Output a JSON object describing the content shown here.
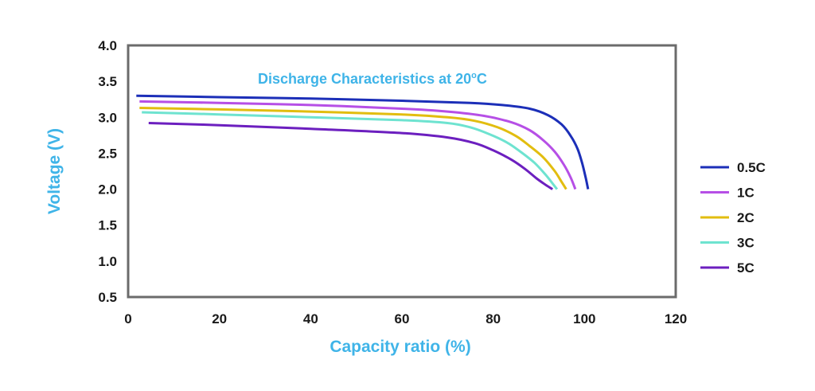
{
  "chart_data": {
    "type": "line",
    "title": "Discharge Characteristics at 20",
    "title_degree": "o",
    "title_unit": "C",
    "xlabel": "Capacity ratio (%)",
    "ylabel": "Voltage (V)",
    "xlim": [
      0,
      120
    ],
    "ylim": [
      0.5,
      4.0
    ],
    "xticks": [
      "0",
      "20",
      "40",
      "60",
      "80",
      "100",
      "120"
    ],
    "yticks": [
      "4.0",
      "3.5",
      "3.0",
      "2.5",
      "2.0",
      "1.5",
      "1.0",
      "0.5"
    ],
    "grid": false,
    "legend_position": "right",
    "colors": {
      "axis": "#6b6b6b",
      "label": "#3fb4e8",
      "title": "#3fb4e8"
    },
    "series": [
      {
        "name": "0.5C",
        "color": "#1c2fb8",
        "x": [
          1.8,
          20,
          40,
          60,
          75,
          82,
          88,
          92,
          95,
          97,
          98.5,
          99.5,
          100.3,
          100.8
        ],
        "y": [
          3.3,
          3.28,
          3.26,
          3.23,
          3.2,
          3.17,
          3.12,
          3.03,
          2.9,
          2.74,
          2.56,
          2.36,
          2.15,
          2.0
        ]
      },
      {
        "name": "1C",
        "color": "#b64fe6",
        "x": [
          2.5,
          20,
          40,
          60,
          70,
          78,
          84,
          88,
          91,
          93.5,
          95.5,
          97,
          98
        ],
        "y": [
          3.22,
          3.2,
          3.17,
          3.12,
          3.08,
          3.02,
          2.93,
          2.82,
          2.68,
          2.52,
          2.34,
          2.16,
          2.0
        ]
      },
      {
        "name": "2C",
        "color": "#e2bd0f",
        "x": [
          2.5,
          20,
          40,
          60,
          70,
          76,
          81,
          85,
          88,
          91,
          93.5,
          95,
          96
        ],
        "y": [
          3.13,
          3.11,
          3.08,
          3.04,
          3.0,
          2.95,
          2.86,
          2.74,
          2.6,
          2.44,
          2.25,
          2.1,
          2.0
        ]
      },
      {
        "name": "3C",
        "color": "#6ee3d0",
        "x": [
          3,
          20,
          40,
          60,
          70,
          75,
          79,
          83,
          86,
          89,
          91.5,
          93,
          94
        ],
        "y": [
          3.07,
          3.04,
          3.0,
          2.96,
          2.92,
          2.86,
          2.77,
          2.65,
          2.52,
          2.37,
          2.2,
          2.08,
          2.0
        ]
      },
      {
        "name": "5C",
        "color": "#6c1fbf",
        "x": [
          4.5,
          20,
          40,
          60,
          70,
          76,
          80,
          84,
          87,
          89.5,
          91.5,
          93
        ],
        "y": [
          2.92,
          2.89,
          2.84,
          2.78,
          2.72,
          2.64,
          2.54,
          2.41,
          2.28,
          2.15,
          2.06,
          2.0
        ]
      }
    ]
  }
}
